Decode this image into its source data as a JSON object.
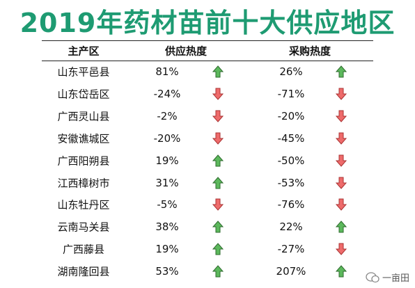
{
  "header": {
    "title": "2019年药材苗前十大供应地区"
  },
  "table": {
    "columns": [
      "主产区",
      "供应热度",
      "采购热度"
    ],
    "rows": [
      [
        "山东平邑县",
        "81%",
        "26%"
      ],
      [
        "山东岱岳区",
        "-24%",
        "-71%"
      ],
      [
        "广西灵山县",
        "-2%",
        "-20%"
      ],
      [
        "安徽谯城区",
        "-20%",
        "-45%"
      ],
      [
        "广西阳朔县",
        "19%",
        "-50%"
      ],
      [
        "江西樟树市",
        "31%",
        "-53%"
      ],
      [
        "山东牡丹区",
        "-5%",
        "-76%"
      ],
      [
        "云南马关县",
        "38%",
        "22%"
      ],
      [
        "广西藤县",
        "19%",
        "-27%"
      ],
      [
        "湖南隆回县",
        "53%",
        "207%"
      ]
    ]
  },
  "watermark": {
    "text": "一亩田"
  }
}
